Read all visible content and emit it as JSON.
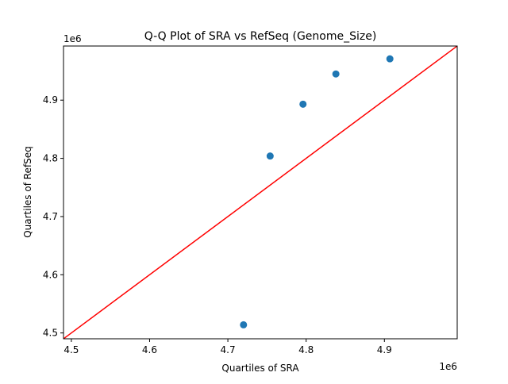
{
  "chart_data": {
    "type": "scatter",
    "title": "Q-Q Plot of SRA vs RefSeq (Genome_Size)",
    "xlabel": "Quartiles of SRA",
    "ylabel": "Quartiles of RefSeq",
    "x_offset_label": "1e6",
    "y_offset_label": "1e6",
    "xlim": [
      4.49,
      4.993
    ],
    "ylim": [
      4.49,
      4.993
    ],
    "xticks": [
      4.5,
      4.6,
      4.7,
      4.8,
      4.9
    ],
    "yticks": [
      4.5,
      4.6,
      4.7,
      4.8,
      4.9
    ],
    "xtick_labels": [
      "4.5",
      "4.6",
      "4.7",
      "4.8",
      "4.9"
    ],
    "ytick_labels": [
      "4.5",
      "4.6",
      "4.7",
      "4.8",
      "4.9"
    ],
    "grid": false,
    "series": [
      {
        "x": [
          4.72,
          4.754,
          4.796,
          4.838,
          4.907
        ],
        "y": [
          4.514,
          4.804,
          4.893,
          4.945,
          4.971
        ],
        "color": "#1f77b4"
      }
    ],
    "reference_line": {
      "type": "y=x",
      "color": "#ff0000"
    }
  }
}
